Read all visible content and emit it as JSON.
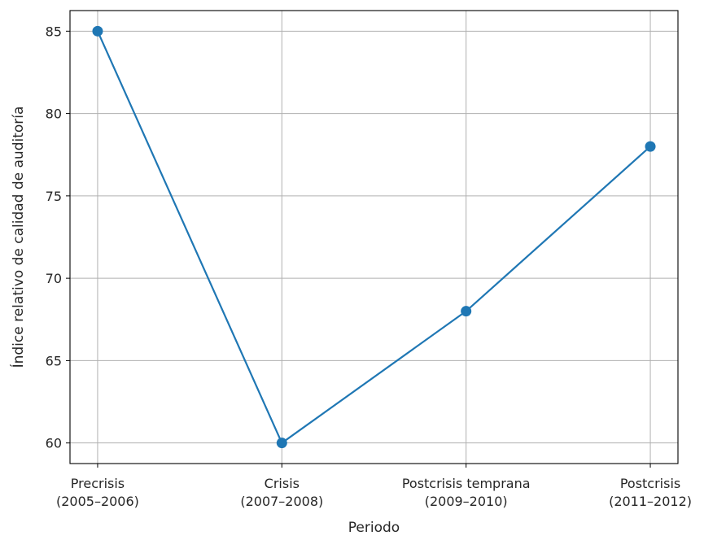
{
  "chart_data": {
    "type": "line",
    "title": "",
    "xlabel": "Periodo",
    "ylabel": "Índice relativo de calidad de auditoría",
    "categories": [
      [
        "Precrisis",
        "(2005–2006)"
      ],
      [
        "Crisis",
        "(2007–2008)"
      ],
      [
        "Postcrisis temprana",
        "(2009–2010)"
      ],
      [
        "Postcrisis",
        "(2011–2012)"
      ]
    ],
    "series": [
      {
        "values": [
          85,
          60,
          68,
          78
        ],
        "color": "#1f77b4",
        "marker": "circle"
      }
    ],
    "ylim": [
      58.75,
      86.25
    ],
    "yticks": [
      60,
      65,
      70,
      75,
      80,
      85
    ],
    "grid": true,
    "legend": false
  }
}
